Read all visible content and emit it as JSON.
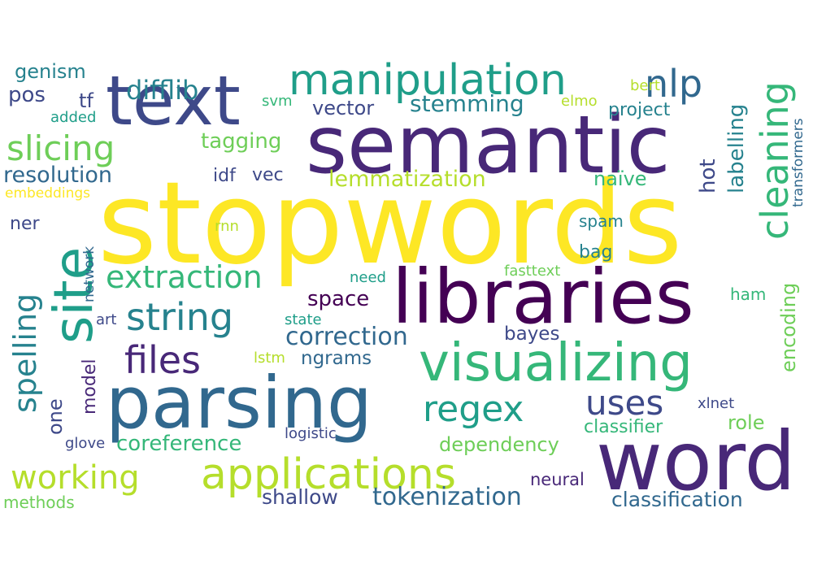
{
  "word_cloud": {
    "palette": {
      "yellow": "#fde725",
      "lime": "#b5de2b",
      "green": "#6ece58",
      "seagreen": "#35b779",
      "teal": "#1f9e89",
      "cyan": "#26828e",
      "blue": "#31688e",
      "indigo": "#3e4989",
      "purple": "#482878",
      "darkpurple": "#440154"
    },
    "words": [
      {
        "text": "stopwords",
        "color": "#fde725"
      },
      {
        "text": "semantic",
        "color": "#482878"
      },
      {
        "text": "word",
        "color": "#482878"
      },
      {
        "text": "libraries",
        "color": "#440154"
      },
      {
        "text": "parsing",
        "color": "#31688e"
      },
      {
        "text": "text",
        "color": "#3e4989"
      },
      {
        "text": "visualizing",
        "color": "#35b779"
      },
      {
        "text": "site",
        "color": "#1f9e89"
      },
      {
        "text": "manipulation",
        "color": "#1f9e89"
      },
      {
        "text": "applications",
        "color": "#b5de2b"
      },
      {
        "text": "string",
        "color": "#26828e"
      },
      {
        "text": "files",
        "color": "#482878"
      },
      {
        "text": "working",
        "color": "#b5de2b"
      },
      {
        "text": "slicing",
        "color": "#6ece58"
      },
      {
        "text": "extraction",
        "color": "#35b779"
      },
      {
        "text": "regex",
        "color": "#1f9e89"
      },
      {
        "text": "nlp",
        "color": "#31688e"
      },
      {
        "text": "uses",
        "color": "#3e4989"
      },
      {
        "text": "cleaning",
        "color": "#35b779"
      },
      {
        "text": "correction",
        "color": "#31688e"
      },
      {
        "text": "spelling",
        "color": "#26828e"
      },
      {
        "text": "difflib",
        "color": "#26828e"
      },
      {
        "text": "tokenization",
        "color": "#31688e"
      },
      {
        "text": "stemming",
        "color": "#26828e"
      },
      {
        "text": "coreference",
        "color": "#35b779"
      },
      {
        "text": "lemmatization",
        "color": "#b5de2b"
      },
      {
        "text": "resolution",
        "color": "#31688e"
      },
      {
        "text": "classification",
        "color": "#31688e"
      },
      {
        "text": "dependency",
        "color": "#6ece58"
      },
      {
        "text": "shallow",
        "color": "#3e4989"
      },
      {
        "text": "tagging",
        "color": "#6ece58"
      },
      {
        "text": "vector",
        "color": "#3e4989"
      },
      {
        "text": "genism",
        "color": "#26828e"
      },
      {
        "text": "encoding",
        "color": "#6ece58"
      },
      {
        "text": "space",
        "color": "#440154"
      },
      {
        "text": "ngrams",
        "color": "#31688e"
      },
      {
        "text": "labelling",
        "color": "#26828e"
      },
      {
        "text": "project",
        "color": "#26828e"
      },
      {
        "text": "classifier",
        "color": "#35b779"
      },
      {
        "text": "bayes",
        "color": "#3e4989"
      },
      {
        "text": "naïve",
        "color": "#35b779"
      },
      {
        "text": "hot",
        "color": "#3e4989"
      },
      {
        "text": "role",
        "color": "#6ece58"
      },
      {
        "text": "neural",
        "color": "#482878"
      },
      {
        "text": "pos",
        "color": "#3e4989"
      },
      {
        "text": "tf",
        "color": "#3e4989"
      },
      {
        "text": "idf",
        "color": "#3e4989"
      },
      {
        "text": "vec",
        "color": "#3e4989"
      },
      {
        "text": "ner",
        "color": "#3e4989"
      },
      {
        "text": "one",
        "color": "#3e4989"
      },
      {
        "text": "bag",
        "color": "#26828e"
      },
      {
        "text": "spam",
        "color": "#26828e"
      },
      {
        "text": "ham",
        "color": "#35b779"
      },
      {
        "text": "model",
        "color": "#482878"
      },
      {
        "text": "svm",
        "color": "#35b779"
      },
      {
        "text": "added",
        "color": "#1f9e89"
      },
      {
        "text": "elmo",
        "color": "#b5de2b"
      },
      {
        "text": "bert",
        "color": "#b5de2b"
      },
      {
        "text": "embeddings",
        "color": "#fde725"
      },
      {
        "text": "transformers",
        "color": "#31688e"
      },
      {
        "text": "rnn",
        "color": "#b5de2b"
      },
      {
        "text": "network",
        "color": "#31688e"
      },
      {
        "text": "fasttext",
        "color": "#6ece58"
      },
      {
        "text": "need",
        "color": "#1f9e89"
      },
      {
        "text": "art",
        "color": "#3e4989"
      },
      {
        "text": "state",
        "color": "#1f9e89"
      },
      {
        "text": "lstm",
        "color": "#b5de2b"
      },
      {
        "text": "logistic",
        "color": "#3e4989"
      },
      {
        "text": "xlnet",
        "color": "#3e4989"
      },
      {
        "text": "glove",
        "color": "#3e4989"
      },
      {
        "text": "methods",
        "color": "#6ece58"
      }
    ]
  }
}
